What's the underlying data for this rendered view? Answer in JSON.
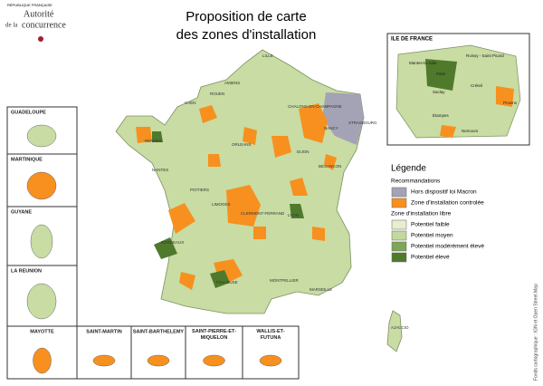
{
  "header": {
    "republic": "RÉPUBLIQUE FRANÇAISE",
    "org_line1": "Autorité",
    "org_line2_prefix": "de la",
    "org_line2": "concurrence"
  },
  "title": [
    "Proposition de carte",
    "des zones d'installation"
  ],
  "inset": {
    "title": "ILE DE FRANCE",
    "labels": [
      "Mantes-la-Jolie",
      "Roissy - Saint Picard",
      "Paris",
      "Créteil",
      "Saclay",
      "Provins",
      "Étampes",
      "Nemours"
    ]
  },
  "legend": {
    "title": "Légende",
    "sections": [
      {
        "heading": "Recommandations",
        "items": [
          {
            "label": "Hors dispositif loi Macron",
            "color": "#a3a3b5"
          },
          {
            "label": "Zone d'installation controlée",
            "color": "#f7901e"
          }
        ]
      },
      {
        "heading": "Zone d'installation libre",
        "items": [
          {
            "label": "Potentiel faible",
            "color": "#e6eecf"
          },
          {
            "label": "Potentiel moyen",
            "color": "#c3d89c"
          },
          {
            "label": "Potentiel modérément élevé",
            "color": "#7fa557"
          },
          {
            "label": "Potentiel élevé",
            "color": "#4f7a2c"
          }
        ]
      }
    ]
  },
  "territories": [
    "GUADELOUPE",
    "MARTINIQUE",
    "GUYANE",
    "LA REUNION",
    "MAYOTTE",
    "SAINT-MARTIN",
    "SAINT-BARTHELEMY",
    "SAINT-PIERRE-ET-MIQUELON",
    "WALLIS-ET-FUTUNA"
  ],
  "cities": [
    "LILLE",
    "AMIENS",
    "ROUEN",
    "CAEN",
    "CHALONS-EN-CHAMPAGNE",
    "STRASBOURG",
    "NANCY",
    "RENNES",
    "ORLEANS",
    "NANTES",
    "DIJON",
    "BESANCON",
    "POITIERS",
    "LIMOGES",
    "CLERMONT-FERRAND",
    "LYON",
    "BORDEAUX",
    "TOULOUSE",
    "MONTPELLIER",
    "MARSEILLE",
    "AJACCIO"
  ],
  "source": "Fonds cartographique : IGN et Open Street Map"
}
